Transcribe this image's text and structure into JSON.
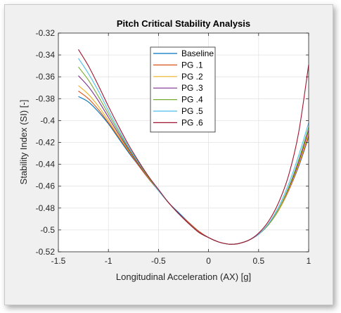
{
  "chart_data": {
    "type": "line",
    "title": "Pitch Critical Stability Analysis",
    "xlabel": "Longitudinal Acceleration (AX) [g]",
    "ylabel": "Stability Index (SI) [-]",
    "xlim": [
      -1.5,
      1
    ],
    "ylim": [
      -0.52,
      -0.32
    ],
    "xticks": [
      -1.5,
      -1,
      -0.5,
      0,
      0.5,
      1
    ],
    "yticks": [
      -0.52,
      -0.5,
      -0.48,
      -0.46,
      -0.44,
      -0.42,
      -0.4,
      -0.38,
      -0.36,
      -0.34,
      -0.32
    ],
    "xtick_labels": [
      "-1.5",
      "-1",
      "-0.5",
      "0",
      "0.5",
      "1"
    ],
    "ytick_labels": [
      "-0.52",
      "-0.5",
      "-0.48",
      "-0.46",
      "-0.44",
      "-0.42",
      "-0.4",
      "-0.38",
      "-0.36",
      "-0.34",
      "-0.32"
    ],
    "grid": true,
    "legend_position": "top-center",
    "x": [
      -1.3,
      -1.2,
      -1.1,
      -1.0,
      -0.9,
      -0.8,
      -0.7,
      -0.6,
      -0.5,
      -0.4,
      -0.3,
      -0.2,
      -0.1,
      0.0,
      0.1,
      0.2,
      0.25,
      0.3,
      0.4,
      0.5,
      0.6,
      0.7,
      0.8,
      0.9,
      1.0
    ],
    "series": [
      {
        "name": "Baseline",
        "color": "#0072bd",
        "values": [
          -0.378,
          -0.383,
          -0.392,
          -0.403,
          -0.416,
          -0.429,
          -0.441,
          -0.453,
          -0.464,
          -0.475,
          -0.484,
          -0.493,
          -0.501,
          -0.507,
          -0.511,
          -0.513,
          -0.513,
          -0.5125,
          -0.5095,
          -0.504,
          -0.495,
          -0.482,
          -0.464,
          -0.442,
          -0.415
        ]
      },
      {
        "name": "PG .1",
        "color": "#d95319",
        "values": [
          -0.373,
          -0.38,
          -0.39,
          -0.402,
          -0.415,
          -0.428,
          -0.441,
          -0.453,
          -0.464,
          -0.475,
          -0.485,
          -0.493,
          -0.501,
          -0.507,
          -0.511,
          -0.513,
          -0.513,
          -0.5125,
          -0.5095,
          -0.504,
          -0.495,
          -0.482,
          -0.464,
          -0.441,
          -0.414
        ]
      },
      {
        "name": "PG .2",
        "color": "#edb120",
        "values": [
          -0.368,
          -0.376,
          -0.387,
          -0.4,
          -0.414,
          -0.427,
          -0.44,
          -0.452,
          -0.464,
          -0.475,
          -0.485,
          -0.494,
          -0.502,
          -0.507,
          -0.511,
          -0.513,
          -0.513,
          -0.5125,
          -0.5095,
          -0.504,
          -0.495,
          -0.482,
          -0.463,
          -0.44,
          -0.412
        ]
      },
      {
        "name": "PG .3",
        "color": "#7e2f8e",
        "values": [
          -0.359,
          -0.369,
          -0.382,
          -0.397,
          -0.412,
          -0.426,
          -0.44,
          -0.452,
          -0.464,
          -0.475,
          -0.485,
          -0.494,
          -0.502,
          -0.507,
          -0.511,
          -0.513,
          -0.513,
          -0.5125,
          -0.5095,
          -0.504,
          -0.495,
          -0.481,
          -0.462,
          -0.438,
          -0.409
        ]
      },
      {
        "name": "PG .4",
        "color": "#77ac30",
        "values": [
          -0.351,
          -0.363,
          -0.378,
          -0.394,
          -0.41,
          -0.425,
          -0.439,
          -0.452,
          -0.464,
          -0.475,
          -0.485,
          -0.494,
          -0.502,
          -0.507,
          -0.511,
          -0.513,
          -0.513,
          -0.5125,
          -0.5095,
          -0.504,
          -0.495,
          -0.481,
          -0.461,
          -0.436,
          -0.406
        ]
      },
      {
        "name": "PG .5",
        "color": "#4dbeee",
        "values": [
          -0.343,
          -0.357,
          -0.373,
          -0.391,
          -0.408,
          -0.424,
          -0.438,
          -0.451,
          -0.464,
          -0.475,
          -0.485,
          -0.494,
          -0.502,
          -0.507,
          -0.511,
          -0.513,
          -0.513,
          -0.5125,
          -0.5095,
          -0.504,
          -0.494,
          -0.479,
          -0.458,
          -0.432,
          -0.402
        ]
      },
      {
        "name": "PG .6",
        "color": "#a2142f",
        "values": [
          -0.335,
          -0.35,
          -0.368,
          -0.387,
          -0.405,
          -0.422,
          -0.437,
          -0.451,
          -0.463,
          -0.475,
          -0.485,
          -0.494,
          -0.502,
          -0.507,
          -0.511,
          -0.513,
          -0.513,
          -0.5125,
          -0.5095,
          -0.503,
          -0.492,
          -0.475,
          -0.45,
          -0.411,
          -0.349
        ]
      }
    ]
  }
}
